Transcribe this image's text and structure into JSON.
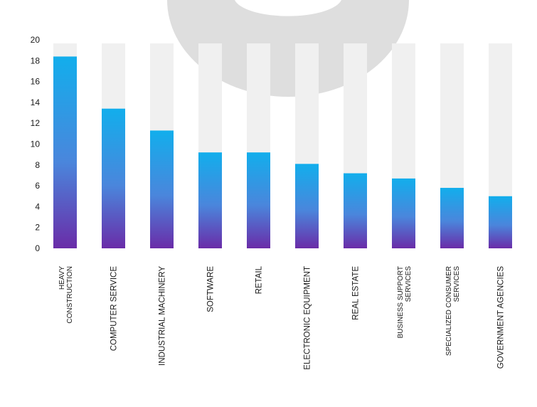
{
  "chart_data": {
    "type": "bar",
    "title": "",
    "xlabel": "",
    "ylabel": "",
    "ylim": [
      0,
      20
    ],
    "yticks": [
      "0",
      "2",
      "4",
      "6",
      "8",
      "10",
      "12",
      "14",
      "16",
      "18",
      "20"
    ],
    "categories": [
      [
        "HEAVY",
        "CONSTRUCTION"
      ],
      [
        "COMPUTER SERVICE"
      ],
      [
        "INDUSTRIAL MACHINERY"
      ],
      [
        "SOFTWARE"
      ],
      [
        "RETAIL"
      ],
      [
        "ELECTRONIC EQUIPMENT"
      ],
      [
        "REAL ESTATE"
      ],
      [
        "BUSINESS SUPPORT",
        "SERVICES"
      ],
      [
        "SPECIALIZED CONSUMER",
        "SERVICES"
      ],
      [
        "GOVERNMENT AGENCIES"
      ]
    ],
    "values": [
      18.4,
      13.4,
      11.3,
      9.2,
      9.2,
      8.1,
      7.2,
      6.7,
      5.8,
      5.0
    ],
    "grid": false,
    "colors": {
      "track": "#f0f0f0",
      "bar_top": "#12aeec",
      "bar_mid": "#4a86dc",
      "bar_bottom": "#6a2ca8",
      "watermark": "#dedede",
      "text": "#1a1a1a"
    }
  }
}
